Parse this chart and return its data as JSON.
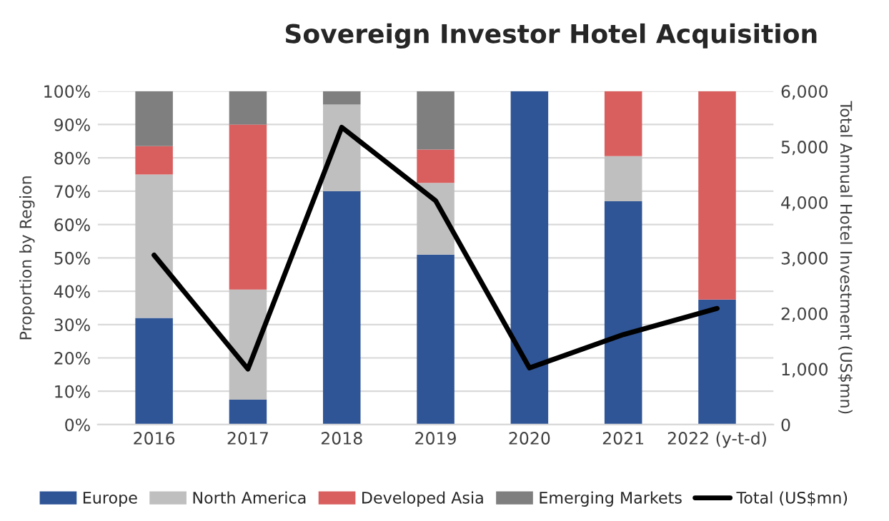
{
  "chart_data": {
    "type": "bar",
    "stacked": true,
    "title": "Sovereign Investor Hotel Acquisition",
    "ylabel": "Proportion by Region",
    "y2label": "Total Annual Hotel Investment (US$mn)",
    "categories": [
      "2016",
      "2017",
      "2018",
      "2019",
      "2020",
      "2021",
      "2022 (y-t-d)"
    ],
    "series": [
      {
        "name": "Europe",
        "color": "#2f5597",
        "values": [
          32,
          7.5,
          70,
          51,
          100,
          67,
          37.5
        ]
      },
      {
        "name": "North America",
        "color": "#bfbfbf",
        "values": [
          43,
          33,
          26,
          21.5,
          0,
          13.5,
          0
        ]
      },
      {
        "name": "Developed Asia",
        "color": "#d95f5f",
        "values": [
          8.5,
          49.5,
          0,
          10,
          0,
          19.5,
          62.5
        ]
      },
      {
        "name": "Emerging Markets",
        "color": "#7f7f7f",
        "values": [
          16.5,
          10,
          4,
          17.5,
          0,
          0,
          0
        ]
      },
      {
        "name": "Total (US$mn)",
        "type": "line",
        "axis": "y2",
        "color": "#000000",
        "values": [
          3050,
          1000,
          5350,
          4030,
          1020,
          1620,
          2090
        ]
      }
    ],
    "ylim": [
      0,
      100
    ],
    "yticks": [
      {
        "value": 0,
        "label": "0%"
      },
      {
        "value": 10,
        "label": "10%"
      },
      {
        "value": 20,
        "label": "20%"
      },
      {
        "value": 30,
        "label": "30%"
      },
      {
        "value": 40,
        "label": "40%"
      },
      {
        "value": 50,
        "label": "50%"
      },
      {
        "value": 60,
        "label": "60%"
      },
      {
        "value": 70,
        "label": "70%"
      },
      {
        "value": 80,
        "label": "80%"
      },
      {
        "value": 90,
        "label": "90%"
      },
      {
        "value": 100,
        "label": "100%"
      }
    ],
    "y2lim": [
      0,
      6000
    ],
    "y2ticks": [
      0,
      {
        "value": 1000,
        "label": "1,000"
      },
      {
        "value": 2000,
        "label": "2,000"
      },
      {
        "value": 3000,
        "label": "3,000"
      },
      {
        "value": 4000,
        "label": "4,000"
      },
      {
        "value": 5000,
        "label": "5,000"
      },
      {
        "value": 6000,
        "label": "6,000"
      }
    ],
    "grid": "y",
    "legend": "bottom"
  }
}
